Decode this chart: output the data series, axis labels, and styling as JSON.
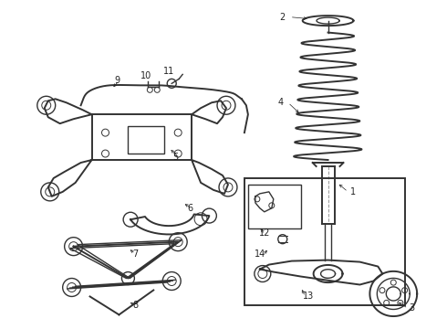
{
  "bg_color": "#ffffff",
  "line_color": "#333333",
  "label_color": "#222222",
  "fig_width": 4.9,
  "fig_height": 3.6,
  "dpi": 100
}
